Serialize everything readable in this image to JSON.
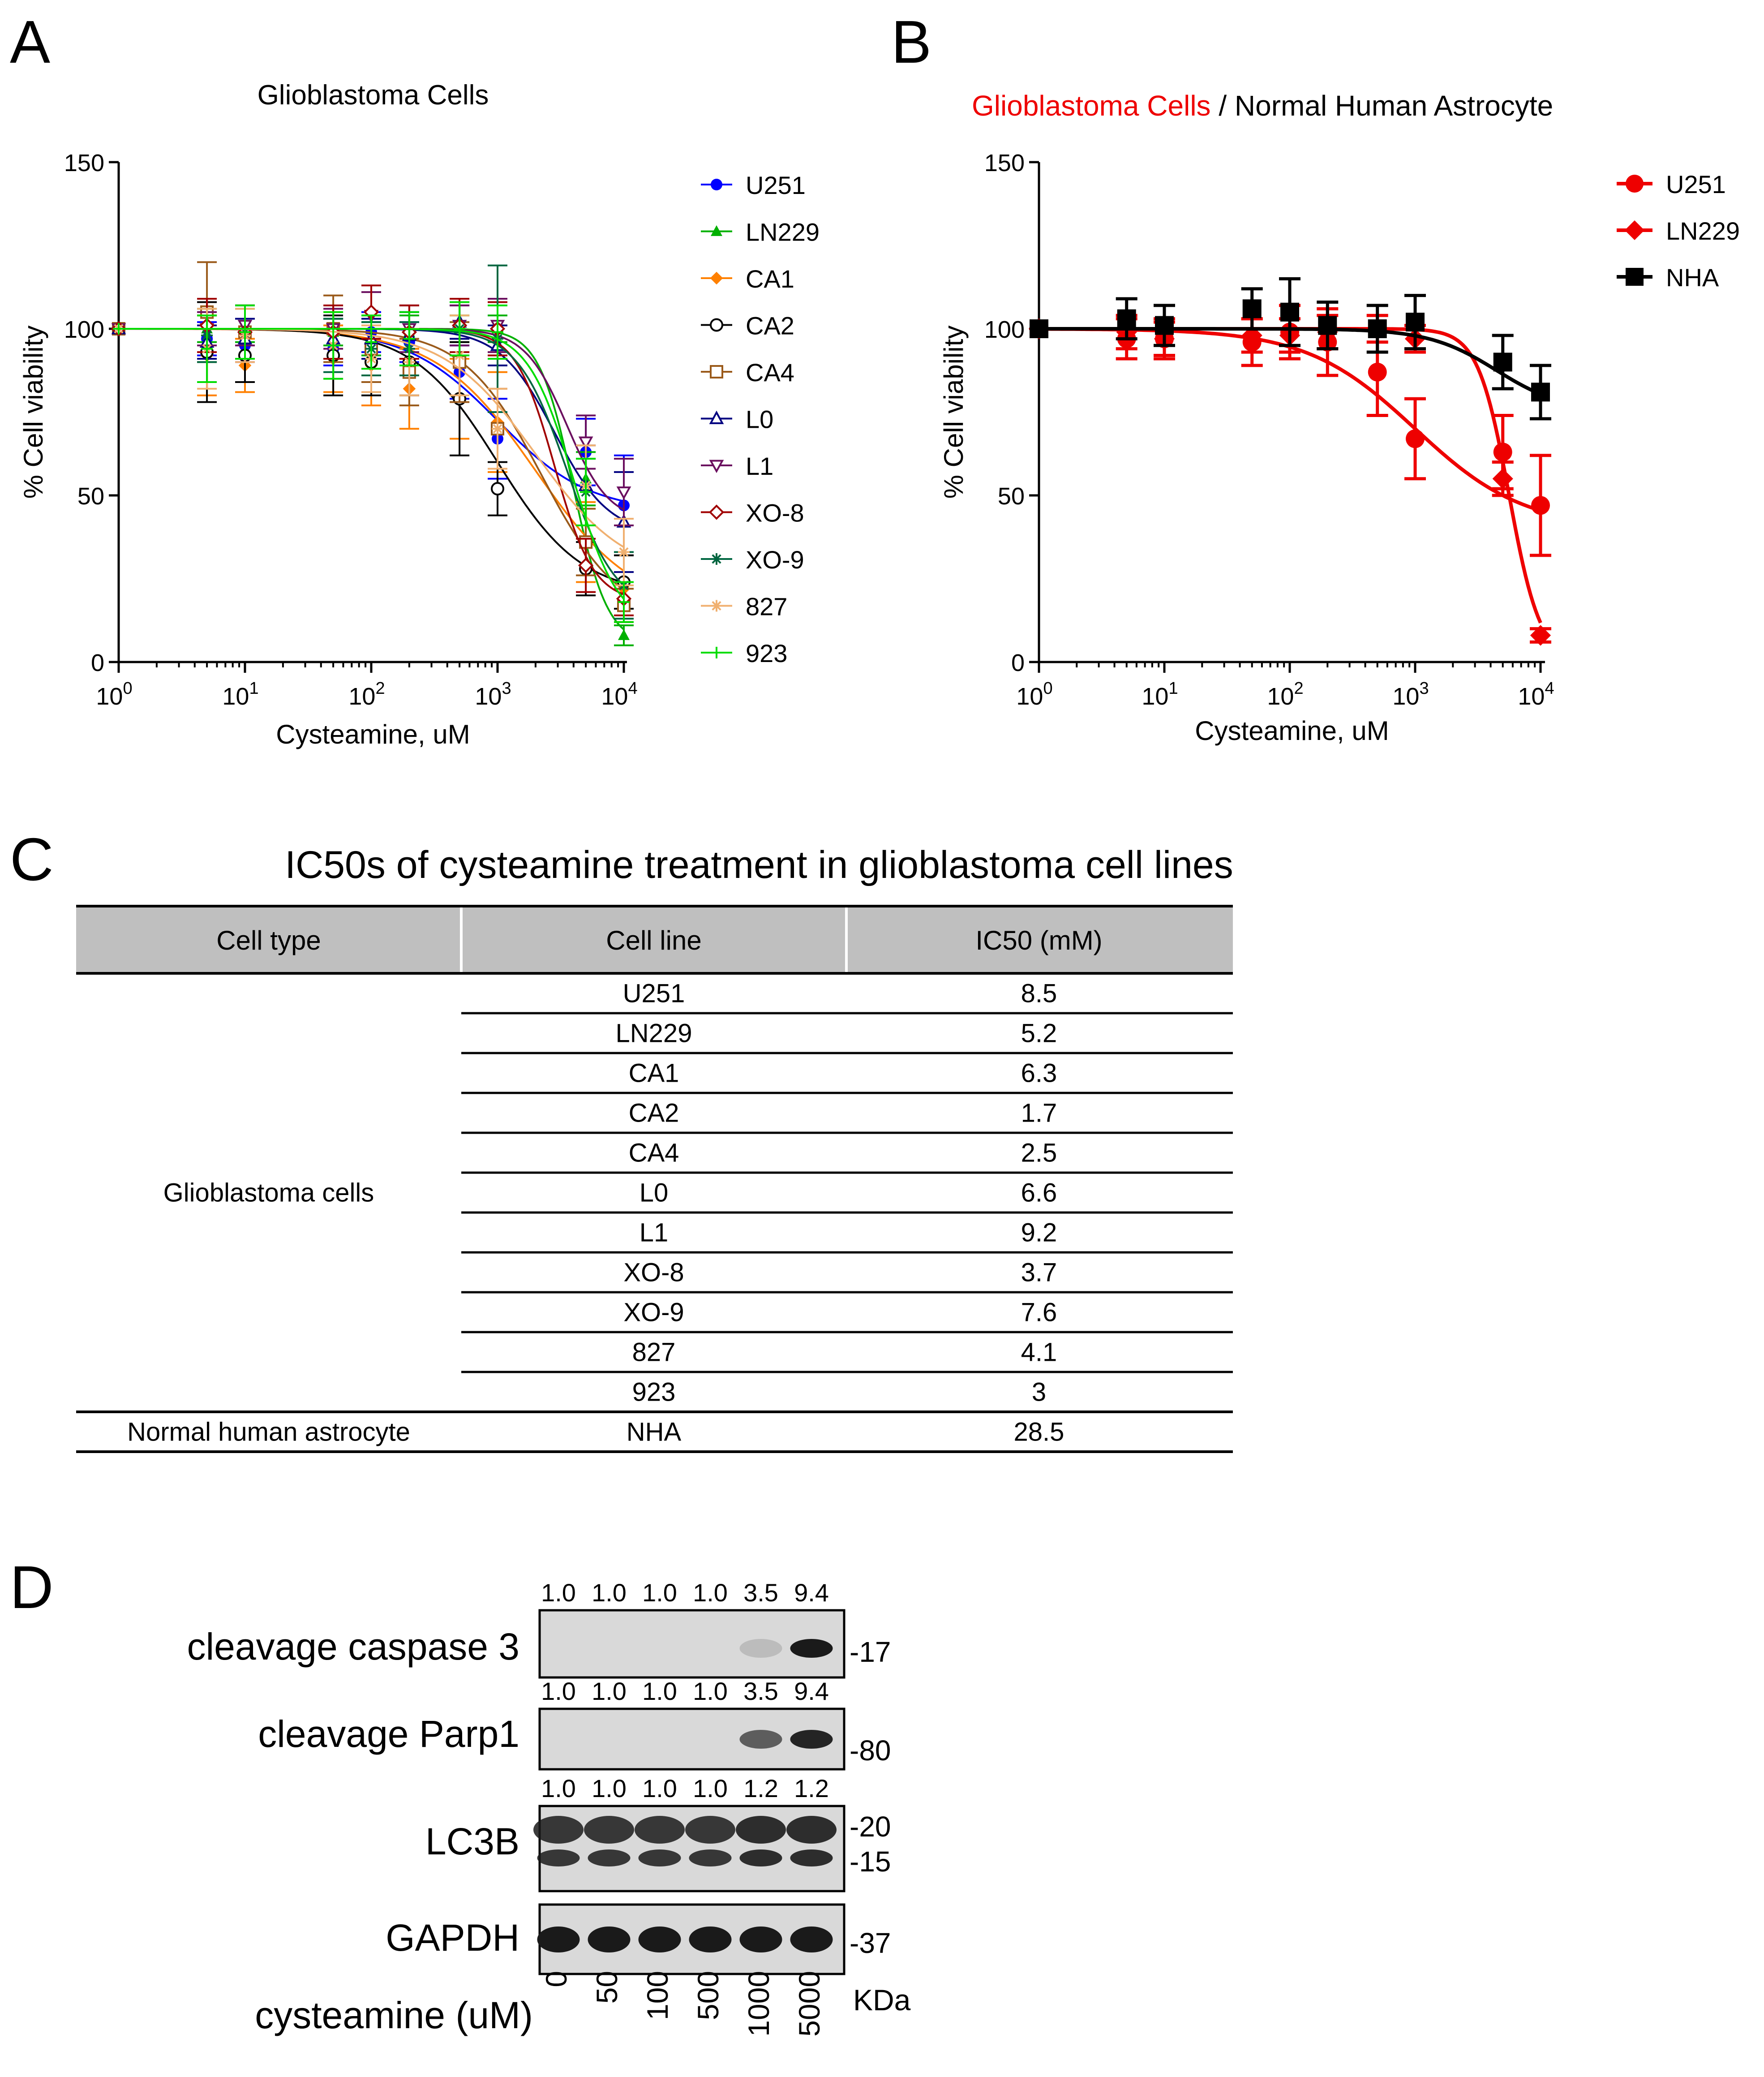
{
  "panel_letters": {
    "a": "A",
    "b": "B",
    "c": "C",
    "d": "D"
  },
  "chart_data": [
    {
      "id": "A",
      "type": "line",
      "title": "Glioblastoma Cells",
      "xlabel": "Cysteamine, uM",
      "ylabel": "% Cell viability",
      "xscale": "log10",
      "xlim": [
        1,
        10000
      ],
      "ylim": [
        0,
        150
      ],
      "yticks": [
        0,
        50,
        100,
        150
      ],
      "xtick_base": "10",
      "xtick_exponents": [
        "0",
        "1",
        "2",
        "3",
        "4"
      ],
      "x": [
        1,
        5,
        10,
        50,
        100,
        200,
        500,
        1000,
        5000,
        10000
      ],
      "legend_position": "right",
      "series": [
        {
          "name": "U251",
          "color": "#0000ff",
          "marker": "circle-filled",
          "values": [
            100,
            97,
            95,
            94,
            99,
            96,
            87,
            67,
            63,
            47
          ],
          "errors": [
            0,
            5,
            5,
            5,
            6,
            6,
            8,
            12,
            10,
            15
          ]
        },
        {
          "name": "LN229",
          "color": "#00b000",
          "marker": "triangle-filled",
          "values": [
            100,
            100,
            101,
            99,
            97,
            99,
            100,
            100,
            55,
            8
          ],
          "errors": [
            0,
            4,
            5,
            4,
            5,
            5,
            4,
            4,
            8,
            3
          ]
        },
        {
          "name": "CA1",
          "color": "#ff8000",
          "marker": "diamond-filled",
          "values": [
            100,
            92,
            89,
            91,
            89,
            82,
            79,
            72,
            36,
            22
          ],
          "errors": [
            0,
            12,
            8,
            10,
            12,
            12,
            12,
            15,
            12,
            10
          ]
        },
        {
          "name": "CA2",
          "color": "#000000",
          "marker": "circle-open",
          "values": [
            100,
            93,
            92,
            92,
            90,
            90,
            79,
            52,
            28,
            24
          ],
          "errors": [
            0,
            15,
            8,
            12,
            10,
            10,
            17,
            8,
            8,
            8
          ]
        },
        {
          "name": "CA4",
          "color": "#9a5a1a",
          "marker": "square-open",
          "values": [
            100,
            105,
            99,
            100,
            94,
            87,
            90,
            70,
            36,
            17
          ],
          "errors": [
            0,
            15,
            8,
            10,
            10,
            10,
            12,
            12,
            10,
            5
          ]
        },
        {
          "name": "L0",
          "color": "#000080",
          "marker": "triangle-open",
          "values": [
            100,
            96,
            97,
            97,
            97,
            98,
            102,
            95,
            53,
            42
          ],
          "errors": [
            0,
            5,
            6,
            6,
            6,
            7,
            5,
            6,
            12,
            15
          ]
        },
        {
          "name": "L1",
          "color": "#6b0f5f",
          "marker": "triangle-down-open",
          "values": [
            100,
            100,
            101,
            100,
            104,
            100,
            101,
            101,
            66,
            51
          ],
          "errors": [
            0,
            5,
            6,
            6,
            7,
            7,
            6,
            8,
            8,
            10
          ]
        },
        {
          "name": "XO-8",
          "color": "#a00000",
          "marker": "diamond-open",
          "values": [
            100,
            101,
            99,
            99,
            105,
            99,
            101,
            100,
            29,
            19
          ],
          "errors": [
            0,
            8,
            8,
            8,
            8,
            8,
            8,
            8,
            8,
            5
          ]
        },
        {
          "name": "XO-9",
          "color": "#006640",
          "marker": "star",
          "values": [
            100,
            98,
            99,
            95,
            94,
            94,
            100,
            97,
            51,
            23
          ],
          "errors": [
            0,
            8,
            8,
            8,
            8,
            8,
            8,
            22,
            10,
            10
          ]
        },
        {
          "name": "827",
          "color": "#f0b070",
          "marker": "star",
          "values": [
            100,
            94,
            98,
            95,
            91,
            90,
            92,
            70,
            53,
            33
          ],
          "errors": [
            0,
            12,
            8,
            10,
            10,
            10,
            12,
            12,
            12,
            10
          ]
        },
        {
          "name": "923",
          "color": "#00dd00",
          "marker": "plus",
          "values": [
            100,
            94,
            99,
            95,
            96,
            97,
            100,
            99,
            51,
            18
          ],
          "errors": [
            0,
            10,
            8,
            10,
            8,
            8,
            8,
            8,
            10,
            6
          ]
        }
      ]
    },
    {
      "id": "B",
      "type": "line",
      "title_parts": [
        "Glioblastoma Cells",
        " / Normal Human Astrocyte"
      ],
      "title_colors": [
        "#ee0000",
        "#000000"
      ],
      "xlabel": "Cysteamine, uM",
      "ylabel": "% Cell viability",
      "xscale": "log10",
      "xlim": [
        1,
        10000
      ],
      "ylim": [
        0,
        150
      ],
      "yticks": [
        0,
        50,
        100,
        150
      ],
      "xtick_base": "10",
      "xtick_exponents": [
        "0",
        "1",
        "2",
        "3",
        "4"
      ],
      "x": [
        1,
        5,
        10,
        50,
        100,
        200,
        500,
        1000,
        5000,
        10000
      ],
      "legend_position": "top-right",
      "series": [
        {
          "name": "U251",
          "color": "#ee0000",
          "marker": "circle-filled",
          "values": [
            100,
            97,
            97,
            96,
            99,
            96,
            87,
            67,
            63,
            47
          ],
          "errors": [
            0,
            6,
            6,
            7,
            8,
            10,
            13,
            12,
            11,
            15
          ],
          "fit": "u251"
        },
        {
          "name": "LN229",
          "color": "#ee0000",
          "marker": "diamond-filled",
          "values": [
            100,
            99,
            97,
            98,
            98,
            99,
            100,
            97,
            55,
            8
          ],
          "errors": [
            0,
            5,
            5,
            5,
            5,
            5,
            4,
            4,
            5,
            2
          ],
          "fit": "ln229"
        },
        {
          "name": "NHA",
          "color": "#000000",
          "marker": "square-filled",
          "values": [
            100,
            103,
            101,
            106,
            105,
            101,
            100,
            102,
            90,
            81
          ],
          "errors": [
            0,
            6,
            6,
            6,
            10,
            7,
            7,
            8,
            8,
            8
          ],
          "fit": "nha"
        }
      ]
    },
    {
      "id": "C",
      "type": "table",
      "title": "IC50s of cysteamine treatment in glioblastoma cell lines",
      "columns": [
        "Cell type",
        "Cell line",
        "IC50 (mM)"
      ],
      "groups": [
        {
          "cell_type": "Glioblastoma cells",
          "rows": [
            [
              "U251",
              "8.5"
            ],
            [
              "LN229",
              "5.2"
            ],
            [
              "CA1",
              "6.3"
            ],
            [
              "CA2",
              "1.7"
            ],
            [
              "CA4",
              "2.5"
            ],
            [
              "L0",
              "6.6"
            ],
            [
              "L1",
              "9.2"
            ],
            [
              "XO-8",
              "3.7"
            ],
            [
              "XO-9",
              "7.6"
            ],
            [
              "827",
              "4.1"
            ],
            [
              "923",
              "3"
            ]
          ]
        },
        {
          "cell_type": "Normal human astrocyte",
          "rows": [
            [
              "NHA",
              "28.5"
            ]
          ]
        }
      ]
    }
  ],
  "western_blot": {
    "blots": [
      {
        "label": "cleavage caspase 3",
        "quant": [
          "1.0",
          "1.0",
          "1.0",
          "1.0",
          "3.5",
          "9.4"
        ],
        "markers": [
          "-17"
        ],
        "band_intensity": [
          0,
          0,
          0,
          0,
          0.15,
          1.0
        ]
      },
      {
        "label": "cleavage Parp1",
        "quant": [
          "1.0",
          "1.0",
          "1.0",
          "1.0",
          "3.5",
          "9.4"
        ],
        "markers": [
          "-80"
        ],
        "band_intensity": [
          0,
          0,
          0,
          0,
          0.65,
          0.95
        ]
      },
      {
        "label": "LC3B",
        "quant": [
          "1.0",
          "1.0",
          "1.0",
          "1.0",
          "1.2",
          "1.2"
        ],
        "markers": [
          "-20",
          "-15"
        ],
        "band_intensity": [
          0.85,
          0.85,
          0.85,
          0.85,
          0.9,
          0.9
        ]
      },
      {
        "label": "GAPDH",
        "quant": [],
        "markers": [
          "-37"
        ],
        "band_intensity": [
          1,
          1,
          1,
          1,
          1,
          1
        ]
      }
    ],
    "treatment_label": "cysteamine (uM)",
    "doses": [
      "0",
      "50",
      "100",
      "500",
      "1000",
      "5000"
    ],
    "unit_label": "KDa"
  }
}
